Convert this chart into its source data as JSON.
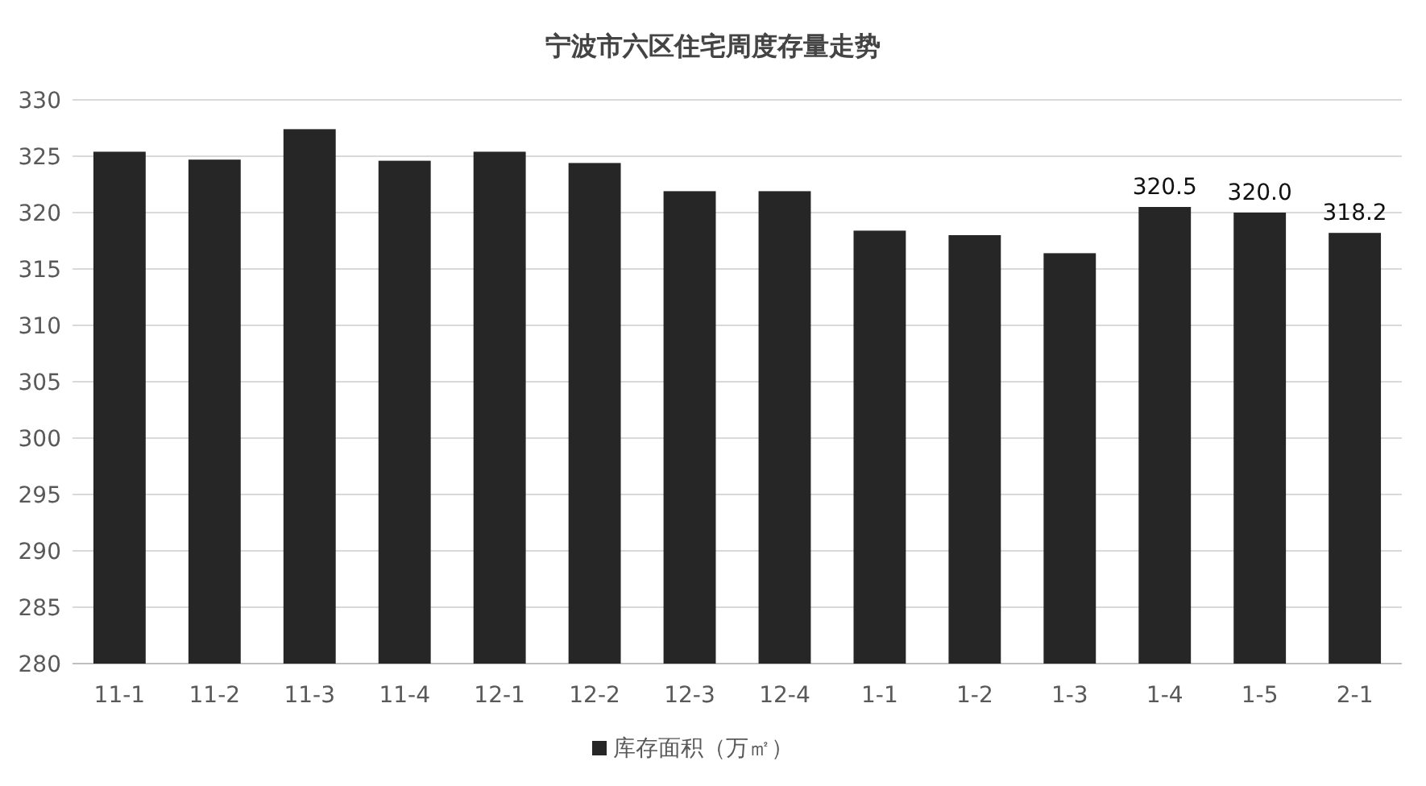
{
  "chart_data": {
    "type": "bar",
    "title": "宁波市六区住宅周度存量走势",
    "categories": [
      "11-1",
      "11-2",
      "11-3",
      "11-4",
      "12-1",
      "12-2",
      "12-3",
      "12-4",
      "1-1",
      "1-2",
      "1-3",
      "1-4",
      "1-5",
      "2-1"
    ],
    "series": [
      {
        "name": "库存面积（万㎡）",
        "color": "#262626",
        "values": [
          325.4,
          324.7,
          327.4,
          324.6,
          325.4,
          324.4,
          321.9,
          321.9,
          318.4,
          318.0,
          316.4,
          320.5,
          320.0,
          318.2
        ],
        "value_labels": [
          null,
          null,
          null,
          null,
          null,
          null,
          null,
          null,
          null,
          null,
          null,
          "320.5",
          "320.0",
          "318.2"
        ]
      }
    ],
    "ylim": [
      280,
      330
    ],
    "yticks": [
      280,
      285,
      290,
      295,
      300,
      305,
      310,
      315,
      320,
      325,
      330
    ],
    "grid": "y",
    "legend": "bottom"
  }
}
